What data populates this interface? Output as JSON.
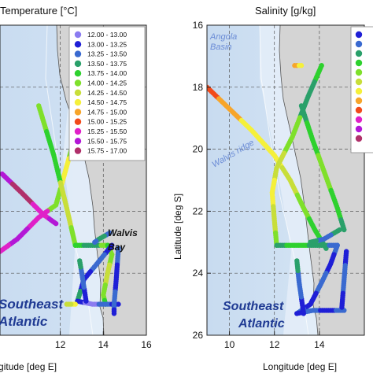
{
  "chart_data": [
    {
      "type": "scatter",
      "title": "Temperature [°C]",
      "xlabel": "Longitude [deg E]",
      "ylabel": "",
      "xlim": [
        9.2,
        16
      ],
      "ylim": [
        16.0,
        26.0
      ],
      "x_ticks": [
        "12",
        "14",
        "16"
      ],
      "y_ticks": [],
      "grid": true,
      "legend_position": "top-right",
      "legend": [
        {
          "label": "12.00  -  13.00",
          "color": "#8b7cf0"
        },
        {
          "label": "13.00  -  13.25",
          "color": "#1f1fd6"
        },
        {
          "label": "13.25  -  13.50",
          "color": "#3a6ad0"
        },
        {
          "label": "13.50  -  13.75",
          "color": "#2aa06a"
        },
        {
          "label": "13.75  -  14.00",
          "color": "#2ed12e"
        },
        {
          "label": "14.00  -  14.25",
          "color": "#7fe02b"
        },
        {
          "label": "14.25  -  14.50",
          "color": "#c8de3a"
        },
        {
          "label": "14.50  -  14.75",
          "color": "#f5f03a"
        },
        {
          "label": "14.75  -  15.00",
          "color": "#f7a52a"
        },
        {
          "label": "15.00  -  15.25",
          "color": "#f24a1a"
        },
        {
          "label": "15.25  -  15.50",
          "color": "#e020c8"
        },
        {
          "label": "15.50  -  15.75",
          "color": "#b318d6"
        },
        {
          "label": "15.75  -  17.00",
          "color": "#b0306a"
        }
      ],
      "annotations": [
        "Walvis",
        "Bay",
        "Southeast",
        "Atlantic"
      ],
      "tracks": [
        {
          "points": [
            [
              13.7,
              17.3
            ],
            [
              13.3,
              17.6
            ],
            [
              13.0,
              18.6
            ],
            [
              12.6,
              19.8
            ],
            [
              12.2,
              20.8
            ],
            [
              11.8,
              21.8
            ],
            [
              11.0,
              22.2
            ],
            [
              10.0,
              22.9
            ],
            [
              9.2,
              23.3
            ]
          ],
          "colors": [
            "#7fe02b",
            "#2ed12e",
            "#c8de3a",
            "#7fe02b",
            "#f5f03a",
            "#7fe02b",
            "#e020c8",
            "#b318d6",
            "#e020c8"
          ]
        },
        {
          "points": [
            [
              9.3,
              20.8
            ],
            [
              10.2,
              21.4
            ],
            [
              11.2,
              22.1
            ],
            [
              11.8,
              22.4
            ]
          ],
          "colors": [
            "#b318d6",
            "#b0306a",
            "#e020c8",
            "#b318d6"
          ]
        },
        {
          "points": [
            [
              11.0,
              18.6
            ],
            [
              11.7,
              20.2
            ],
            [
              12.3,
              21.9
            ],
            [
              12.7,
              23.1
            ]
          ],
          "colors": [
            "#7fe02b",
            "#2ed12e",
            "#c8de3a",
            "#7fe02b"
          ]
        },
        {
          "points": [
            [
              12.7,
              23.1
            ],
            [
              13.5,
              23.1
            ],
            [
              14.2,
              23.1
            ]
          ],
          "colors": [
            "#2ed12e",
            "#2aa06a",
            "#7fe02b"
          ]
        },
        {
          "points": [
            [
              14.2,
              23.1
            ],
            [
              14.4,
              23.4
            ],
            [
              14.2,
              24.0
            ],
            [
              14.0,
              24.7
            ],
            [
              14.1,
              25.0
            ]
          ],
          "colors": [
            "#2ed12e",
            "#7fe02b",
            "#c8de3a",
            "#7fe02b",
            "#2ed12e"
          ]
        },
        {
          "points": [
            [
              14.3,
              22.7
            ],
            [
              13.8,
              22.9
            ],
            [
              13.6,
              23.0
            ]
          ],
          "colors": [
            "#3a6ad0",
            "#2aa06a",
            "#3a6ad0"
          ]
        },
        {
          "points": [
            [
              14.4,
              23.1
            ],
            [
              13.7,
              23.7
            ],
            [
              13.1,
              24.2
            ],
            [
              12.8,
              24.9
            ]
          ],
          "colors": [
            "#1f1fd6",
            "#3a6ad0",
            "#1f1fd6",
            "#2aa06a"
          ]
        },
        {
          "points": [
            [
              12.8,
              24.9
            ],
            [
              13.5,
              25.0
            ],
            [
              14.1,
              25.0
            ],
            [
              14.7,
              25.0
            ]
          ],
          "colors": [
            "#1f1fd6",
            "#8b7cf0",
            "#3a6ad0",
            "#1f1fd6"
          ]
        },
        {
          "points": [
            [
              13.2,
              24.9
            ],
            [
              13.0,
              24.0
            ],
            [
              12.9,
              23.6
            ]
          ],
          "colors": [
            "#1f1fd6",
            "#3a6ad0",
            "#2aa06a"
          ]
        },
        {
          "points": [
            [
              14.7,
              23.2
            ],
            [
              14.6,
              24.2
            ],
            [
              14.5,
              25.0
            ],
            [
              14.5,
              25.3
            ]
          ],
          "colors": [
            "#3a6ad0",
            "#1f1fd6",
            "#3a6ad0",
            "#1f1fd6"
          ]
        },
        {
          "points": [
            [
              12.7,
              25.0
            ],
            [
              12.3,
              25.0
            ]
          ],
          "colors": [
            "#f5f03a",
            "#c8de3a"
          ]
        }
      ]
    },
    {
      "type": "scatter",
      "title": "Salinity [g/kg]",
      "xlabel": "Longitude [deg E]",
      "ylabel": "Latitude [deg S]",
      "xlim": [
        9.0,
        16
      ],
      "ylim": [
        16,
        26
      ],
      "x_ticks": [
        "10",
        "12",
        "14"
      ],
      "y_ticks": [
        "16",
        "18",
        "20",
        "22",
        "24",
        "26"
      ],
      "grid": true,
      "legend_position": "top-right",
      "legend": [
        {
          "label": "",
          "color": "#1f1fd6"
        },
        {
          "label": "",
          "color": "#3a6ad0"
        },
        {
          "label": "",
          "color": "#2aa06a"
        },
        {
          "label": "",
          "color": "#2ed12e"
        },
        {
          "label": "",
          "color": "#7fe02b"
        },
        {
          "label": "",
          "color": "#c8de3a"
        },
        {
          "label": "",
          "color": "#f5f03a"
        },
        {
          "label": "",
          "color": "#f7a52a"
        },
        {
          "label": "",
          "color": "#f24a1a"
        },
        {
          "label": "",
          "color": "#e020c8"
        },
        {
          "label": "",
          "color": "#b318d6"
        },
        {
          "label": "",
          "color": "#b0306a"
        }
      ],
      "annotations": [
        "Angola",
        "Basin",
        "Walvis ridge",
        "Southeast",
        "Atlantic"
      ],
      "tracks": [
        {
          "points": [
            [
              9.0,
              18.0
            ],
            [
              10.0,
              18.7
            ],
            [
              11.0,
              19.4
            ],
            [
              12.0,
              20.2
            ],
            [
              12.7,
              21.0
            ],
            [
              13.3,
              21.9
            ],
            [
              13.8,
              22.6
            ],
            [
              14.3,
              23.2
            ]
          ],
          "colors": [
            "#f24a1a",
            "#f7a52a",
            "#f5f03a",
            "#f5f03a",
            "#c8de3a",
            "#7fe02b",
            "#2ed12e",
            "#2aa06a"
          ]
        },
        {
          "points": [
            [
              14.1,
              17.3
            ],
            [
              13.5,
              18.3
            ],
            [
              12.8,
              19.6
            ],
            [
              12.1,
              20.6
            ],
            [
              11.9,
              21.4
            ],
            [
              12.0,
              22.3
            ],
            [
              12.1,
              23.1
            ]
          ],
          "colors": [
            "#2ed12e",
            "#2aa06a",
            "#7fe02b",
            "#c8de3a",
            "#f5f03a",
            "#c8de3a",
            "#7fe02b"
          ]
        },
        {
          "points": [
            [
              13.2,
              18.6
            ],
            [
              13.7,
              19.7
            ],
            [
              14.2,
              20.7
            ],
            [
              14.8,
              21.9
            ],
            [
              15.1,
              22.6
            ]
          ],
          "colors": [
            "#2aa06a",
            "#2ed12e",
            "#7fe02b",
            "#2ed12e",
            "#2aa06a"
          ]
        },
        {
          "points": [
            [
              12.1,
              23.1
            ],
            [
              13.0,
              23.1
            ],
            [
              14.0,
              23.1
            ],
            [
              14.8,
              23.1
            ]
          ],
          "colors": [
            "#2aa06a",
            "#2ed12e",
            "#2aa06a",
            "#3a6ad0"
          ]
        },
        {
          "points": [
            [
              14.9,
              22.6
            ],
            [
              14.2,
              22.9
            ],
            [
              13.6,
              23.0
            ]
          ],
          "colors": [
            "#2aa06a",
            "#3a6ad0",
            "#2aa06a"
          ]
        },
        {
          "points": [
            [
              14.8,
              23.1
            ],
            [
              14.5,
              23.7
            ],
            [
              14.1,
              24.3
            ],
            [
              13.6,
              25.0
            ],
            [
              13.0,
              25.3
            ]
          ],
          "colors": [
            "#3a6ad0",
            "#1f1fd6",
            "#3a6ad0",
            "#1f1fd6",
            "#3a6ad0"
          ]
        },
        {
          "points": [
            [
              13.0,
              25.3
            ],
            [
              13.7,
              25.2
            ],
            [
              14.4,
              25.2
            ],
            [
              15.1,
              25.2
            ]
          ],
          "colors": [
            "#1f1fd6",
            "#3a6ad0",
            "#1f1fd6",
            "#3a6ad0"
          ]
        },
        {
          "points": [
            [
              15.2,
              23.3
            ],
            [
              15.1,
              24.2
            ],
            [
              15.0,
              25.1
            ]
          ],
          "colors": [
            "#1f1fd6",
            "#3a6ad0",
            "#1f1fd6"
          ]
        },
        {
          "points": [
            [
              13.3,
              25.3
            ],
            [
              13.1,
              24.3
            ],
            [
              13.0,
              23.6
            ]
          ],
          "colors": [
            "#1f1fd6",
            "#3a6ad0",
            "#2aa06a"
          ]
        },
        {
          "points": [
            [
              12.9,
              17.3
            ],
            [
              13.2,
              17.3
            ]
          ],
          "colors": [
            "#f7a52a",
            "#f5f03a"
          ]
        }
      ]
    }
  ]
}
